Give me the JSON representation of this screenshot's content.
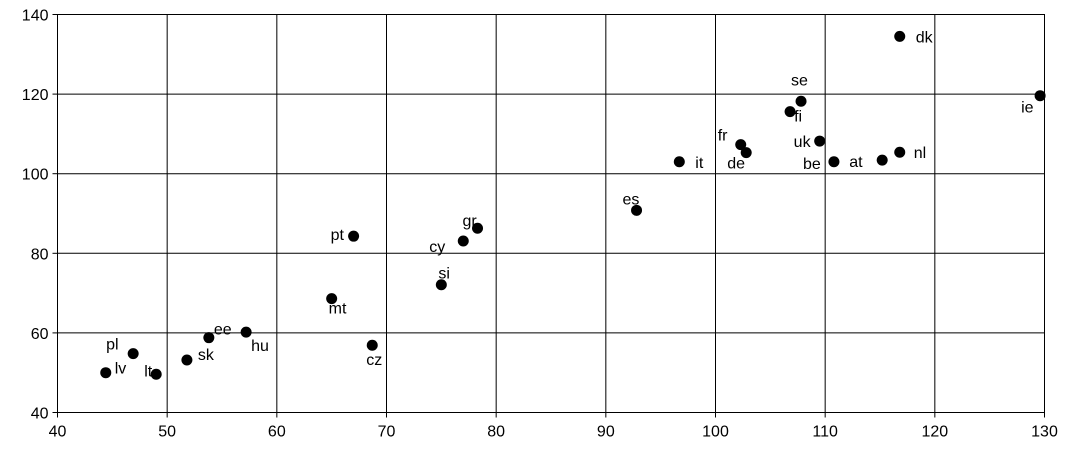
{
  "chart_data": {
    "type": "scatter",
    "title": "",
    "xlabel": "",
    "ylabel": "",
    "xlim": [
      40,
      130
    ],
    "ylim": [
      40,
      140
    ],
    "x_ticks": [
      40,
      50,
      60,
      70,
      80,
      90,
      100,
      110,
      120,
      130
    ],
    "y_ticks": [
      40,
      60,
      80,
      100,
      120,
      140
    ],
    "grid": true,
    "marker_color": "#000000",
    "points": [
      {
        "label": "lv",
        "x": 44.4,
        "y": 50.0
      },
      {
        "label": "pl",
        "x": 46.9,
        "y": 54.8
      },
      {
        "label": "lt",
        "x": 49.0,
        "y": 49.6
      },
      {
        "label": "sk",
        "x": 51.8,
        "y": 53.2
      },
      {
        "label": "ee",
        "x": 53.8,
        "y": 58.8
      },
      {
        "label": "hu",
        "x": 57.2,
        "y": 60.2
      },
      {
        "label": "mt",
        "x": 65.0,
        "y": 68.6
      },
      {
        "label": "pt",
        "x": 67.0,
        "y": 84.3
      },
      {
        "label": "cz",
        "x": 68.7,
        "y": 56.9
      },
      {
        "label": "si",
        "x": 75.0,
        "y": 72.1
      },
      {
        "label": "cy",
        "x": 77.0,
        "y": 83.1
      },
      {
        "label": "gr",
        "x": 78.3,
        "y": 86.3
      },
      {
        "label": "es",
        "x": 92.8,
        "y": 90.8
      },
      {
        "label": "it",
        "x": 96.7,
        "y": 103.0
      },
      {
        "label": "fr",
        "x": 102.3,
        "y": 107.3
      },
      {
        "label": "de",
        "x": 102.8,
        "y": 105.3
      },
      {
        "label": "fi",
        "x": 106.8,
        "y": 115.6
      },
      {
        "label": "se",
        "x": 107.8,
        "y": 118.2
      },
      {
        "label": "uk",
        "x": 109.5,
        "y": 108.2
      },
      {
        "label": "be",
        "x": 110.8,
        "y": 103.0
      },
      {
        "label": "at",
        "x": 115.2,
        "y": 103.4
      },
      {
        "label": "nl",
        "x": 116.8,
        "y": 105.4
      },
      {
        "label": "dk",
        "x": 116.8,
        "y": 134.5
      },
      {
        "label": "ie",
        "x": 129.6,
        "y": 119.6
      }
    ]
  }
}
